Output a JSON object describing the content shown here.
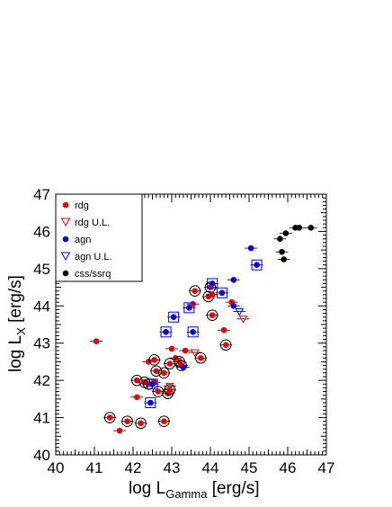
{
  "chart_data": {
    "type": "scatter",
    "xlabel": "log L",
    "xlabel_sub": "Gamma",
    "xlabel_unit": " [erg/s]",
    "ylabel": "log L",
    "ylabel_sub": "X",
    "ylabel_unit": " [erg/s]",
    "xlim": [
      40,
      47
    ],
    "ylim": [
      40,
      47
    ],
    "x_ticks": [
      "40",
      "41",
      "42",
      "43",
      "44",
      "45",
      "46",
      "47"
    ],
    "y_ticks": [
      "40",
      "41",
      "42",
      "43",
      "44",
      "45",
      "46",
      "47"
    ],
    "grid": false,
    "legend_position": "top-left",
    "legend": [
      {
        "label": "rdg",
        "marker": "filled-circle",
        "color": "#ee0000"
      },
      {
        "label": "rdg U.L.",
        "marker": "open-triangle-down",
        "color": "#ee0000"
      },
      {
        "label": "agn",
        "marker": "filled-circle",
        "color": "#0000ee"
      },
      {
        "label": "agn U.L.",
        "marker": "open-triangle-down",
        "color": "#0000ee"
      },
      {
        "label": "css/ssrq",
        "marker": "filled-circle",
        "color": "#000000"
      }
    ],
    "series": [
      {
        "name": "rdg",
        "color": "#ee0000",
        "marker": "filled-circle",
        "points": [
          {
            "x": 41.05,
            "y": 43.05
          },
          {
            "x": 41.4,
            "y": 41.0,
            "ring": true
          },
          {
            "x": 41.65,
            "y": 40.65
          },
          {
            "x": 41.85,
            "y": 40.9,
            "ring": true
          },
          {
            "x": 42.1,
            "y": 41.55
          },
          {
            "x": 42.1,
            "y": 42.0,
            "ring": true
          },
          {
            "x": 42.2,
            "y": 40.85,
            "ring": true
          },
          {
            "x": 42.3,
            "y": 41.95,
            "ring": true
          },
          {
            "x": 42.4,
            "y": 42.5
          },
          {
            "x": 42.4,
            "y": 41.9,
            "ring": true
          },
          {
            "x": 42.55,
            "y": 41.95
          },
          {
            "x": 42.55,
            "y": 42.55,
            "ring": true
          },
          {
            "x": 42.6,
            "y": 42.25,
            "ring": true
          },
          {
            "x": 42.65,
            "y": 41.7,
            "ring": true
          },
          {
            "x": 42.8,
            "y": 42.2,
            "ring": true
          },
          {
            "x": 42.8,
            "y": 40.9,
            "ring": true
          },
          {
            "x": 42.9,
            "y": 41.65,
            "ring": true
          },
          {
            "x": 42.95,
            "y": 41.75,
            "ring": true
          },
          {
            "x": 42.95,
            "y": 42.45,
            "ring": true
          },
          {
            "x": 43.0,
            "y": 42.85
          },
          {
            "x": 43.1,
            "y": 42.6
          },
          {
            "x": 43.2,
            "y": 42.5,
            "ring": true
          },
          {
            "x": 43.25,
            "y": 42.4,
            "ring": true
          },
          {
            "x": 43.35,
            "y": 42.8
          },
          {
            "x": 43.55,
            "y": 44.05
          },
          {
            "x": 43.6,
            "y": 44.4,
            "ring": true
          },
          {
            "x": 43.75,
            "y": 42.6,
            "ring": true
          },
          {
            "x": 43.95,
            "y": 44.25,
            "ring": true
          },
          {
            "x": 44.0,
            "y": 44.5,
            "ring": true
          },
          {
            "x": 44.05,
            "y": 43.75,
            "ring": true
          },
          {
            "x": 44.05,
            "y": 44.3
          },
          {
            "x": 44.35,
            "y": 43.35
          },
          {
            "x": 44.4,
            "y": 42.95,
            "ring": true
          },
          {
            "x": 44.55,
            "y": 44.1
          }
        ]
      },
      {
        "name": "rdg U.L.",
        "color": "#ee0000",
        "marker": "open-triangle-down",
        "points": [
          {
            "x": 42.95,
            "y": 41.85
          },
          {
            "x": 43.6,
            "y": 42.75
          },
          {
            "x": 44.85,
            "y": 43.65
          }
        ]
      },
      {
        "name": "agn",
        "color": "#0000ee",
        "marker": "filled-circle",
        "points": [
          {
            "x": 42.45,
            "y": 41.4,
            "box": true
          },
          {
            "x": 42.5,
            "y": 41.9,
            "box": true
          },
          {
            "x": 42.85,
            "y": 43.3,
            "box": true
          },
          {
            "x": 43.05,
            "y": 43.7,
            "box": true
          },
          {
            "x": 43.3,
            "y": 42.35
          },
          {
            "x": 43.45,
            "y": 43.95,
            "box": true
          },
          {
            "x": 43.55,
            "y": 43.3,
            "box": true
          },
          {
            "x": 44.05,
            "y": 44.6,
            "box": true
          },
          {
            "x": 44.3,
            "y": 44.35,
            "box": true
          },
          {
            "x": 44.6,
            "y": 44.0
          },
          {
            "x": 44.6,
            "y": 44.7
          },
          {
            "x": 45.05,
            "y": 45.55
          },
          {
            "x": 45.2,
            "y": 45.1,
            "box": true
          }
        ]
      },
      {
        "name": "agn U.L.",
        "color": "#0000ee",
        "marker": "open-triangle-down",
        "points": [
          {
            "x": 44.75,
            "y": 43.85
          }
        ]
      },
      {
        "name": "css/ssrq",
        "color": "#000000",
        "marker": "filled-circle",
        "points": [
          {
            "x": 45.8,
            "y": 45.8
          },
          {
            "x": 45.85,
            "y": 45.45
          },
          {
            "x": 45.9,
            "y": 45.25
          },
          {
            "x": 45.95,
            "y": 45.95
          },
          {
            "x": 46.2,
            "y": 46.1
          },
          {
            "x": 46.3,
            "y": 46.1
          },
          {
            "x": 46.6,
            "y": 46.1
          }
        ]
      }
    ]
  }
}
